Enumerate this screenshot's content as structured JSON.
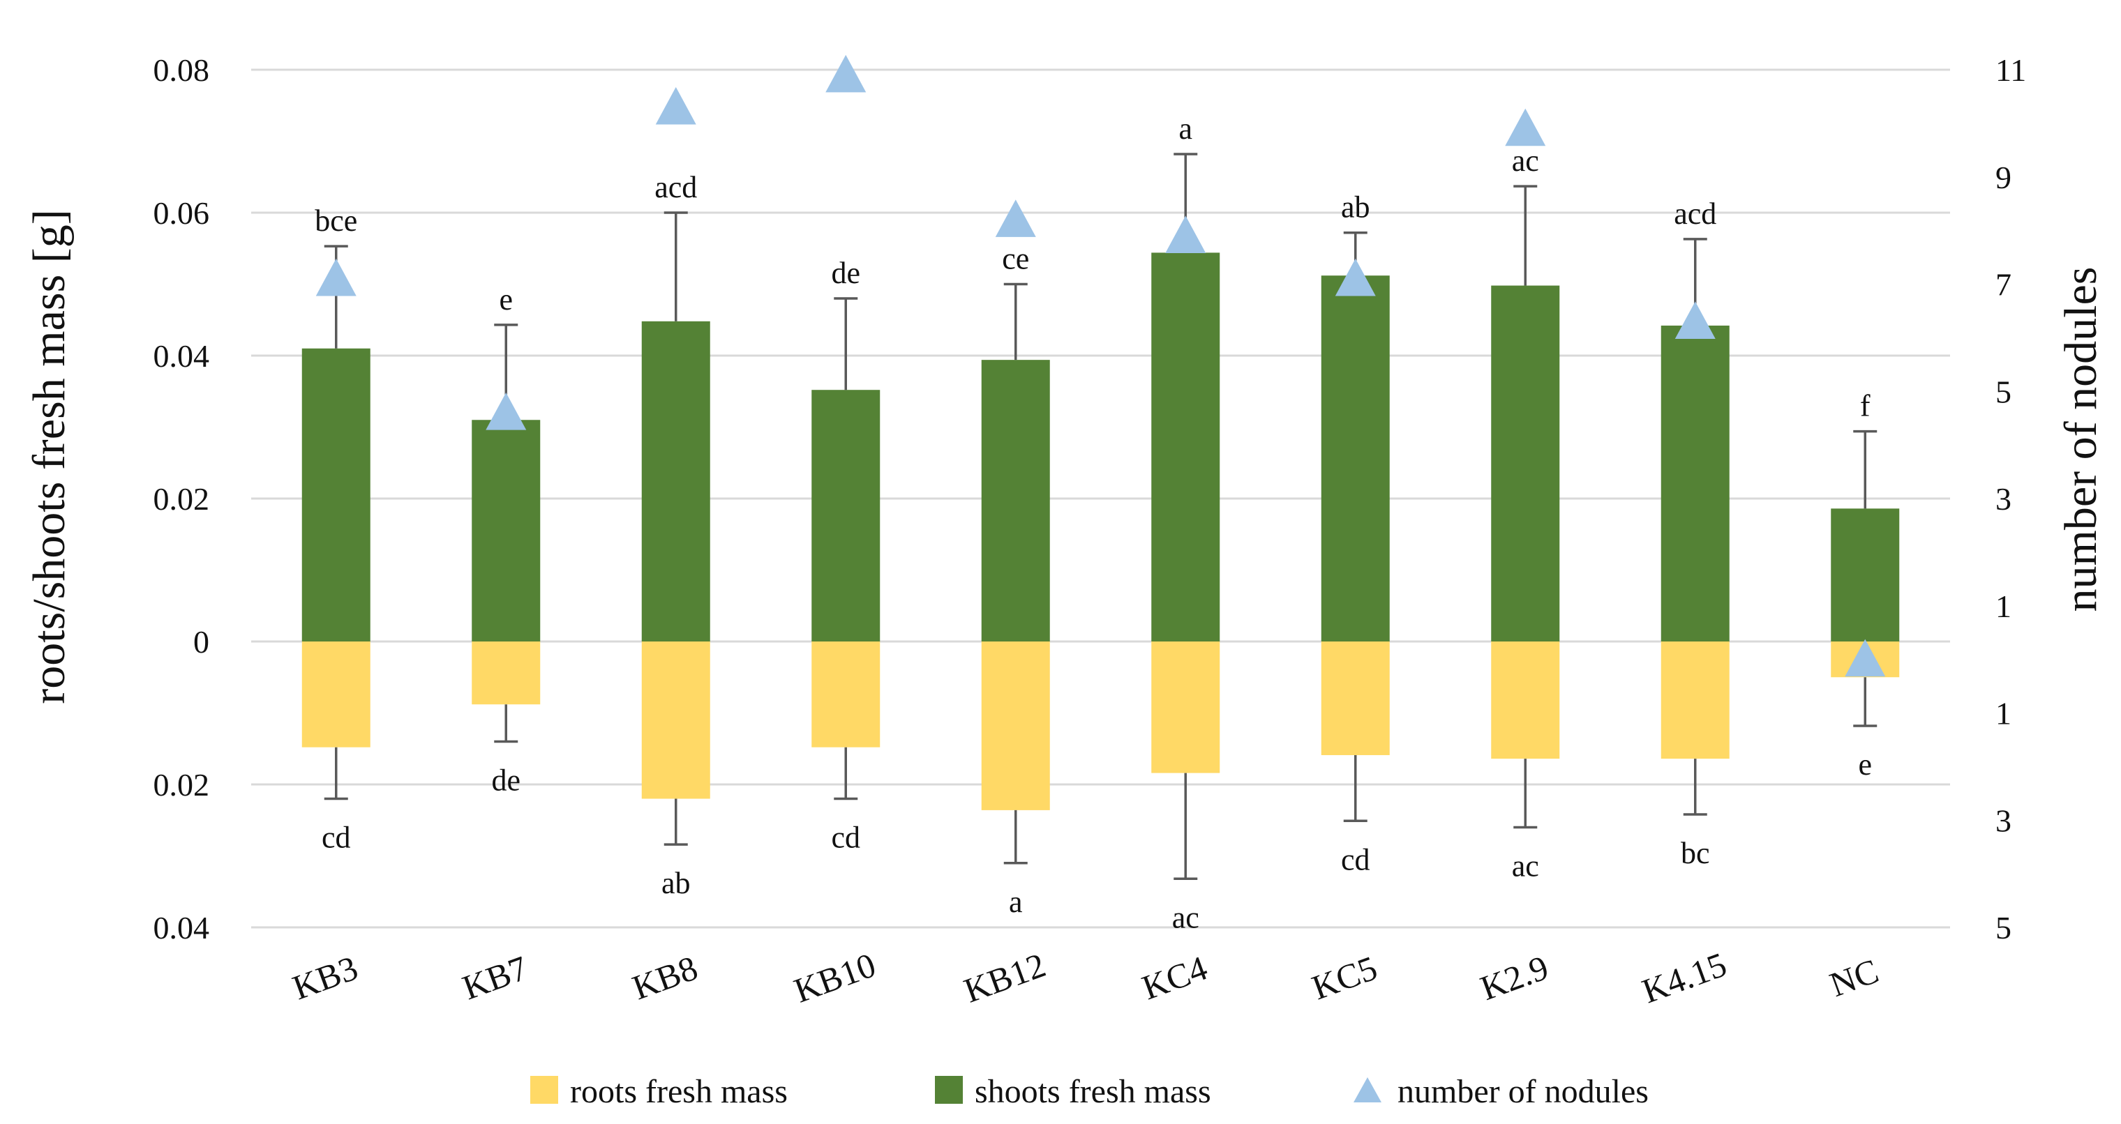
{
  "chart_data": {
    "type": "bar",
    "categories": [
      "KB3",
      "KB7",
      "KB8",
      "KB10",
      "KB12",
      "KC4",
      "KC5",
      "K2.9",
      "K4.15",
      "NC"
    ],
    "ylabel_left": "roots/shoots fresh mass [g]",
    "ylabel_right": "number of nodules",
    "left_ticks": [
      {
        "value": 0.08,
        "label": "0.08"
      },
      {
        "value": 0.06,
        "label": "0.06"
      },
      {
        "value": 0.04,
        "label": "0.04"
      },
      {
        "value": 0.02,
        "label": "0.02"
      },
      {
        "value": 0,
        "label": "0"
      },
      {
        "value": -0.02,
        "label": "0.02"
      },
      {
        "value": -0.04,
        "label": "0.04"
      }
    ],
    "right_ticks": [
      {
        "value": 11,
        "label": "11"
      },
      {
        "value": 9,
        "label": "9"
      },
      {
        "value": 7,
        "label": "7"
      },
      {
        "value": 5,
        "label": "5"
      },
      {
        "value": 3,
        "label": "3"
      },
      {
        "value": 1,
        "label": "1"
      },
      {
        "value": -1,
        "label": "1"
      },
      {
        "value": -3,
        "label": "3"
      },
      {
        "value": -5,
        "label": "5"
      }
    ],
    "ylim_left": [
      -0.04,
      0.08
    ],
    "ylim_right": [
      -5,
      11
    ],
    "grid": true,
    "legend_position": "bottom",
    "series": [
      {
        "name": "roots fresh mass",
        "color": "#FFD966",
        "values": [
          0.0148,
          0.0088,
          0.022,
          0.0148,
          0.0236,
          0.0184,
          0.0159,
          0.0164,
          0.0164,
          0.005
        ],
        "errors": [
          0.0072,
          0.0052,
          0.0064,
          0.0072,
          0.0074,
          0.0148,
          0.0092,
          0.0096,
          0.0078,
          0.0068
        ],
        "letters": [
          "cd",
          "de",
          "ab",
          "cd",
          "a",
          "ac",
          "cd",
          "ac",
          "bc",
          "e"
        ]
      },
      {
        "name": "shoots fresh mass",
        "color": "#548235",
        "values": [
          0.041,
          0.031,
          0.0448,
          0.0352,
          0.0394,
          0.0544,
          0.0512,
          0.0498,
          0.0442,
          0.0186
        ],
        "errors": [
          0.0143,
          0.0133,
          0.0152,
          0.0128,
          0.0106,
          0.0138,
          0.006,
          0.0139,
          0.0121,
          0.0108
        ],
        "letters": [
          "bce",
          "e",
          "acd",
          "de",
          "ce",
          "a",
          "ab",
          "ac",
          "acd",
          "f"
        ]
      },
      {
        "name": "number of nodules",
        "type": "scatter",
        "marker": "triangle",
        "color": "#9DC3E6",
        "values": [
          7.1,
          4.6,
          10.3,
          10.9,
          8.2,
          7.9,
          7.1,
          9.9,
          6.3,
          0
        ]
      }
    ]
  }
}
